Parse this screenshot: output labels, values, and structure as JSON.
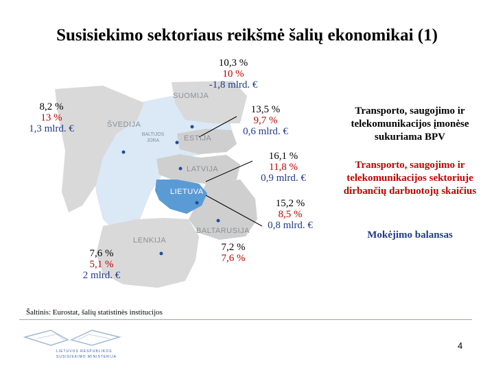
{
  "title": "Susisiekimo sektoriaus reikšmė šalių ekonomikai (1)",
  "map": {
    "countries": {
      "suomija": "SUOMIJA",
      "svedija": "ŠVEDIJA",
      "baltijos_jura": "BALTIJOS JŪRA",
      "estija": "ESTIJA",
      "latvija": "LATVIJA",
      "lietuva": "LIETUVA",
      "baltarusija": "BALTARUSIJA",
      "lenkija": "LENKIJA"
    },
    "colors": {
      "land": "#d6d6d6",
      "sea": "#dbe8f5",
      "lithuania": "#5b9bd5",
      "capital": "#1f4e9c"
    }
  },
  "figures": {
    "suomija": {
      "line1": "10,3 %",
      "line2": "10 %",
      "line3": "-1,8 mlrd. €"
    },
    "svedija": {
      "line1": "8,2 %",
      "line2": "13 %",
      "line3": "1,3 mlrd. €"
    },
    "estija": {
      "line1": "13,5 %",
      "line2": "9,7 %",
      "line3": "0,6 mlrd. €"
    },
    "latvija": {
      "line1": "16,1 %",
      "line2": "11,8 %",
      "line3": "0,9 mlrd. €"
    },
    "lietuva": {
      "line1": "15,2 %",
      "line2": "8,5 %",
      "line3": "0,8 mlrd. €"
    },
    "lenkija": {
      "line1": "7,6 %",
      "line2": "5,1 %",
      "line3": "2 mlrd. €"
    },
    "baltarusija": {
      "line1": "7,2 %",
      "line2": "7,6 %"
    }
  },
  "legend": {
    "item1": "Transporto, saugojimo ir telekomunikacijos įmonėse sukuriama BPV",
    "item2": "Transporto, saugojimo ir telekomunikacijos sektoriuje dirbančių darbuotojų skaičius",
    "item3": "Mokėjimo balansas",
    "colors": {
      "item1": "#000000",
      "item2": "#c00000",
      "item3": "#1f3a8a"
    }
  },
  "source": "Šaltinis: Eurostat, šalių statistinės institucijos",
  "logo": {
    "line1": "LIETUVOS RESPUBLIKOS",
    "line2": "SUSISIEKIMO MINISTERIJA"
  },
  "page_number": "4"
}
